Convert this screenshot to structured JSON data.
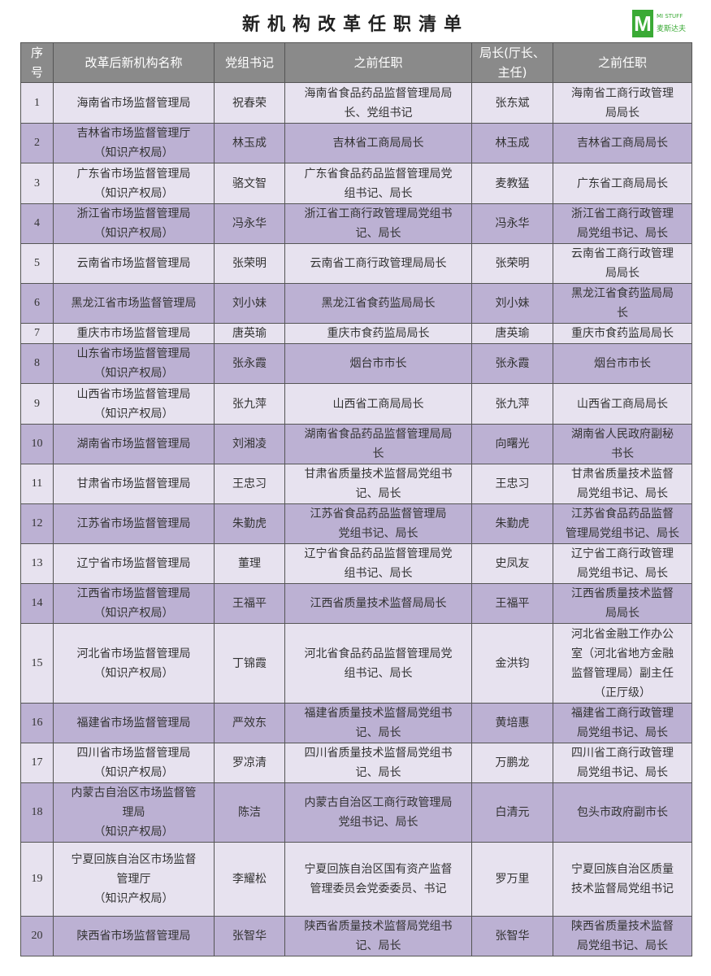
{
  "title": "新机构改革任职清单",
  "logo": {
    "letter": "M",
    "line1": "MI STUFF",
    "line2": "麦斯达夫"
  },
  "colors": {
    "header": "#8a8a8a",
    "row_light": "#e7e2ef",
    "row_dark": "#bcb1d3",
    "logo": "#3aaa35"
  },
  "headers": [
    "序\n号",
    "改革后新机构名称",
    "党组书记",
    "之前任职",
    "局长(厅长、\n主任)",
    "之前任职"
  ],
  "rows": [
    [
      "1",
      "海南省市场监督管理局",
      "祝春荣",
      "海南省食品药品监督管理局局\n长、党组书记",
      "张东斌",
      "海南省工商行政管理\n局局长"
    ],
    [
      "2",
      "吉林省市场监督管理厅\n（知识产权局）",
      "林玉成",
      "吉林省工商局局长",
      "林玉成",
      "吉林省工商局局长"
    ],
    [
      "3",
      "广东省市场监督管理局\n（知识产权局）",
      "骆文智",
      "广东省食品药品监督管理局党\n组书记、局长",
      "麦教猛",
      "广东省工商局局长"
    ],
    [
      "4",
      "浙江省市场监督管理局\n（知识产权局）",
      "冯永华",
      "浙江省工商行政管理局党组书\n记、局长",
      "冯永华",
      "浙江省工商行政管理\n局党组书记、局长"
    ],
    [
      "5",
      "云南省市场监督管理局",
      "张荣明",
      "云南省工商行政管理局局长",
      "张荣明",
      "云南省工商行政管理\n局局长"
    ],
    [
      "6",
      "黑龙江省市场监督管理局",
      "刘小妹",
      "黑龙江省食药监局局长",
      "刘小妹",
      "黑龙江省食药监局局\n长"
    ],
    [
      "7",
      "重庆市市场监督管理局",
      "唐英瑜",
      "重庆市食药监局局长",
      "唐英瑜",
      "重庆市食药监局局长"
    ],
    [
      "8",
      "山东省市场监督管理局\n（知识产权局）",
      "张永霞",
      "烟台市市长",
      "张永霞",
      "烟台市市长"
    ],
    [
      "9",
      "山西省市场监督管理局\n（知识产权局）",
      "张九萍",
      "山西省工商局局长",
      "张九萍",
      "山西省工商局局长"
    ],
    [
      "10",
      "湖南省市场监督管理局",
      "刘湘凌",
      "湖南省食品药品监督管理局局\n长",
      "向曙光",
      "湖南省人民政府副秘\n书长"
    ],
    [
      "11",
      "甘肃省市场监督管理局",
      "王忠习",
      "甘肃省质量技术监督局党组书\n记、局长",
      "王忠习",
      "甘肃省质量技术监督\n局党组书记、局长"
    ],
    [
      "12",
      "江苏省市场监督管理局",
      "朱勤虎",
      "江苏省食品药品监督管理局\n党组书记、局长",
      "朱勤虎",
      "江苏省食品药品监督\n管理局党组书记、局长"
    ],
    [
      "13",
      "辽宁省市场监督管理局",
      "董理",
      "辽宁省食品药品监督管理局党\n组书记、局长",
      "史凤友",
      "辽宁省工商行政管理\n局党组书记、局长"
    ],
    [
      "14",
      "江西省市场监督管理局\n（知识产权局）",
      "王福平",
      "江西省质量技术监督局局长",
      "王福平",
      "江西省质量技术监督\n局局长"
    ],
    [
      "15",
      "河北省市场监督管理局\n（知识产权局）",
      "丁锦霞",
      "河北省食品药品监督管理局党\n组书记、局长",
      "金洪钧",
      "河北省金融工作办公\n室（河北省地方金融\n监督管理局）副主任\n（正厅级）"
    ],
    [
      "16",
      "福建省市场监督管理局",
      "严效东",
      "福建省质量技术监督局党组书\n记、局长",
      "黄培惠",
      "福建省工商行政管理\n局党组书记、局长"
    ],
    [
      "17",
      "四川省市场监督管理局\n（知识产权局）",
      "罗凉清",
      "四川省质量技术监督局党组书\n记、局长",
      "万鹏龙",
      "四川省工商行政管理\n局党组书记、局长"
    ],
    [
      "18",
      "内蒙古自治区市场监督管\n理局\n（知识产权局）",
      "陈洁",
      "内蒙古自治区工商行政管理局\n党组书记、局长",
      "白清元",
      "包头市政府副市长"
    ],
    [
      "19",
      "宁夏回族自治区市场监督\n管理厅\n（知识产权局）",
      "李耀松",
      "宁夏回族自治区国有资产监督\n管理委员会党委委员、书记",
      "罗万里",
      "宁夏回族自治区质量\n技术监督局党组书记"
    ],
    [
      "20",
      "陕西省市场监督管理局",
      "张智华",
      "陕西省质量技术监督局党组书\n记、局长",
      "张智华",
      "陕西省质量技术监督\n局党组书记、局长"
    ]
  ]
}
